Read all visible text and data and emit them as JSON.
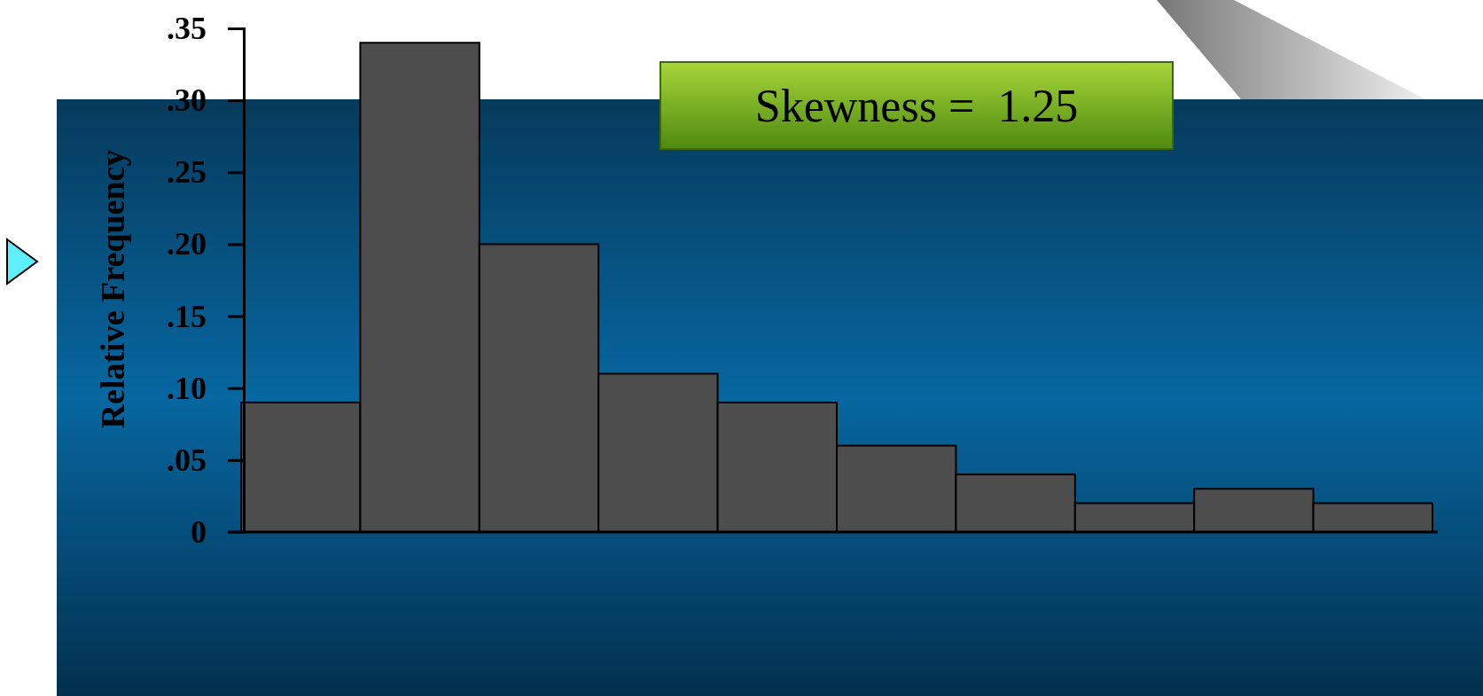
{
  "chart_data": {
    "type": "bar",
    "ylabel": "Relative Frequency",
    "annotations": [
      "Skewness =  1.25"
    ],
    "categories": [
      null,
      null,
      null,
      null,
      null,
      null,
      null,
      null,
      null,
      null
    ],
    "values": [
      0.09,
      0.34,
      0.2,
      0.11,
      0.09,
      0.06,
      0.04,
      0.02,
      0.03,
      0.02
    ],
    "color": "#4d4d4d",
    "ylim": [
      0,
      0.35
    ],
    "yticks": [
      0,
      {
        "value": 0.05,
        "label": ".05"
      },
      {
        "value": 0.1,
        "label": ".10"
      },
      {
        "value": 0.15,
        "label": ".15"
      },
      {
        "value": 0.2,
        "label": ".20"
      },
      {
        "value": 0.25,
        "label": ".25"
      },
      {
        "value": 0.3,
        "label": ".30"
      },
      {
        "value": 0.35,
        "label": ".35"
      }
    ],
    "grid": false
  }
}
